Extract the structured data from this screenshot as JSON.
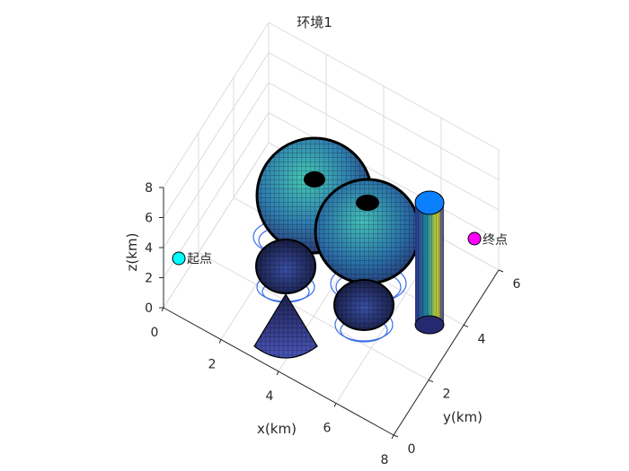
{
  "chart_data": {
    "type": "3d-surface",
    "title": "环境1",
    "xlabel": "x(km)",
    "ylabel": "y(km)",
    "zlabel": "z(km)",
    "xlim": [
      0,
      8
    ],
    "ylim": [
      0,
      6
    ],
    "zlim": [
      0,
      8
    ],
    "xticks": [
      "0",
      "2",
      "4",
      "6",
      "8"
    ],
    "yticks": [
      "0",
      "2",
      "4",
      "6"
    ],
    "zticks": [
      "0",
      "2",
      "4",
      "6",
      "8"
    ],
    "grid": true,
    "obstacles": [
      {
        "shape": "sphere",
        "center": [
          3.2,
          3.8,
          5.6
        ],
        "radius": 1.45
      },
      {
        "shape": "sphere",
        "center": [
          5.0,
          4.0,
          4.2
        ],
        "radius": 1.6
      },
      {
        "shape": "sphere",
        "center": [
          3.1,
          2.4,
          3.0
        ],
        "radius": 0.85
      },
      {
        "shape": "sphere",
        "center": [
          5.0,
          2.0,
          2.6
        ],
        "radius": 0.85
      },
      {
        "shape": "cone",
        "center": [
          4.5,
          0.6,
          0
        ],
        "radius": 0.9,
        "height": 3.0
      },
      {
        "shape": "cylinder",
        "center": [
          7.0,
          3.7,
          0
        ],
        "radius": 0.35,
        "height": 8.0
      }
    ],
    "points": [
      {
        "name": "起点",
        "x": 0,
        "y": 3.5,
        "z": 3.5,
        "color": "#00ffff"
      },
      {
        "name": "终点",
        "x": 8,
        "y": 4.5,
        "z": 3.0,
        "color": "#ff00ff"
      }
    ]
  }
}
